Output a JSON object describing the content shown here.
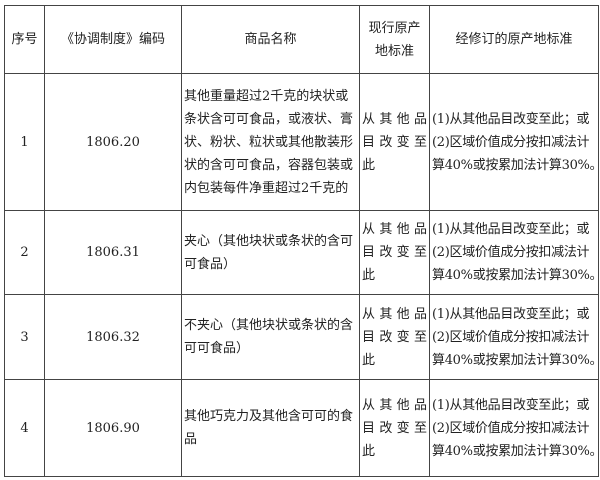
{
  "headers": {
    "seq": "序号",
    "code": "《协调制度》编码",
    "name": "商品名称",
    "current": [
      "现行原产",
      "地标准"
    ],
    "revised": "经修订的原产地标准"
  },
  "rows": [
    {
      "seq": "1",
      "code": "1806.20",
      "name": [
        "其他重量超过2千克的块状或",
        "条状含可可食品，或液状、膏",
        "状、粉状、粒状或其他散装形",
        "状的含可可食品，容器包装或",
        "内包装每件净重超过2千克的"
      ],
      "current": [
        "从 其 他 品",
        "目 改 变 至",
        "此"
      ],
      "revised": [
        "(1)从其他品目改变至此；或",
        "(2)区域价值成分按扣减法计",
        "算40%或按累加法计算30%。"
      ]
    },
    {
      "seq": "2",
      "code": "1806.31",
      "name": [
        "夹心（其他块状或条状的含可",
        "可食品）"
      ],
      "current": [
        "从 其 他 品",
        "目 改 变 至",
        "此"
      ],
      "revised": [
        "(1)从其他品目改变至此；或",
        "(2)区域价值成分按扣减法计",
        "算40%或按累加法计算30%。"
      ]
    },
    {
      "seq": "3",
      "code": "1806.32",
      "name": [
        "不夹心（其他块状或条状的含",
        "可可食品）"
      ],
      "current": [
        "从 其 他 品",
        "目 改 变 至",
        "此"
      ],
      "revised": [
        "(1)从其他品目改变至此；或",
        "(2)区域价值成分按扣减法计",
        "算40%或按累加法计算30%。"
      ]
    },
    {
      "seq": "4",
      "code": "1806.90",
      "name": [
        "其他巧克力及其他含可可的食",
        "品"
      ],
      "current": [
        "从 其 他 品",
        "目 改 变 至",
        "此"
      ],
      "revised": [
        "(1)从其他品目改变至此；或",
        "(2)区域价值成分按扣减法计",
        "算40%或按累加法计算30%。"
      ]
    }
  ]
}
